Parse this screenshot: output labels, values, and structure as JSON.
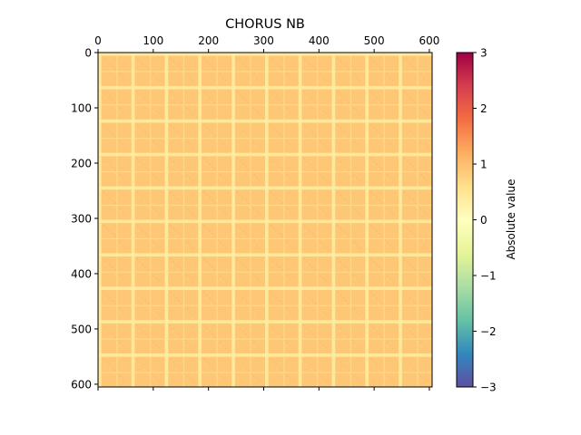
{
  "chart_data": {
    "type": "heatmap",
    "title": "CHORUS NB",
    "xlabel": "",
    "ylabel": "",
    "matrix_size": 605,
    "block_count": 10,
    "block_size": 60.5,
    "x_ticks": [
      0,
      100,
      200,
      300,
      400,
      500,
      600
    ],
    "y_ticks": [
      0,
      100,
      200,
      300,
      400,
      500,
      600
    ],
    "x_axis_position": "top",
    "y_axis_inverted": true,
    "value_levels": {
      "background": 0.9,
      "band": 0.35,
      "diagonal": 1.1
    },
    "colorbar": {
      "label": "Absolute value",
      "vmin": -3,
      "vmax": 3,
      "ticks": [
        3,
        2,
        1,
        0,
        -1,
        -2,
        -3
      ],
      "colormap": "Spectral_r",
      "colors": [
        "#5e4fa2",
        "#3288bd",
        "#66c2a5",
        "#abdda4",
        "#e6f598",
        "#ffffbf",
        "#fee08b",
        "#fdae61",
        "#f46d43",
        "#d53e4f",
        "#9e0142"
      ]
    }
  }
}
